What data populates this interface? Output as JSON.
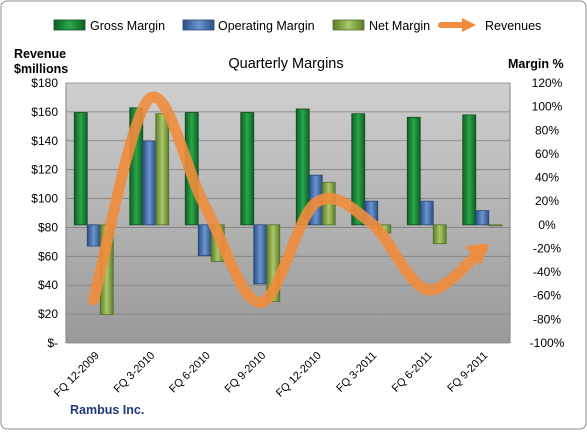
{
  "chart_data": {
    "type": "bar",
    "title": "Quarterly Margins",
    "company": "Rambus Inc.",
    "left_axis": {
      "label_line1": "Revenue",
      "label_line2": "$millions",
      "range": [
        0,
        180
      ],
      "ticks": [
        "$-",
        "$20",
        "$40",
        "$60",
        "$80",
        "$100",
        "$120",
        "$140",
        "$160",
        "$180"
      ]
    },
    "right_axis": {
      "label": "Margin %",
      "range": [
        -100,
        120
      ],
      "ticks": [
        "-100%",
        "-80%",
        "-60%",
        "-40%",
        "-20%",
        "0%",
        "20%",
        "40%",
        "60%",
        "80%",
        "100%",
        "120%"
      ]
    },
    "categories": [
      "FQ 12-2009",
      "FQ 3-2010",
      "FQ 6-2010",
      "FQ 9-2010",
      "FQ 12-2010",
      "FQ 3-2011",
      "FQ 6-2011",
      "FQ 9-2011"
    ],
    "series": [
      {
        "name": "Gross Margin",
        "axis": "right",
        "color": "#1e8a3c",
        "values": [
          95,
          99,
          95,
          95,
          98,
          94,
          91,
          93
        ]
      },
      {
        "name": "Operating Margin",
        "axis": "right",
        "color": "#4a76b8",
        "values": [
          -18,
          71,
          -26,
          -50,
          42,
          20,
          20,
          12
        ]
      },
      {
        "name": "Net Margin",
        "axis": "right",
        "color": "#8db04a",
        "values": [
          -76,
          94,
          -31,
          -65,
          36,
          -7,
          -16,
          0
        ]
      },
      {
        "name": "Revenues",
        "axis": "left",
        "color": "#f08c3c",
        "values": [
          30,
          169,
          95,
          28,
          97,
          83,
          37,
          65
        ]
      }
    ],
    "grid": true,
    "legend_position": "top"
  }
}
